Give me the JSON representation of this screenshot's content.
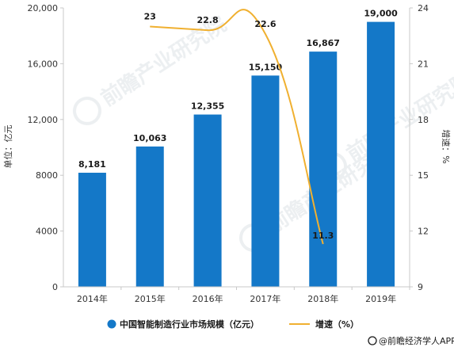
{
  "chart_data": {
    "type": "bar",
    "categories": [
      "2014年",
      "2015年",
      "2016年",
      "2017年",
      "2018年",
      "2019年"
    ],
    "series": [
      {
        "name": "中国智能制造行业市场规模（亿元）",
        "type": "bar",
        "axis": "left",
        "color": "#1478c8",
        "values": [
          8181,
          10063,
          12355,
          15150,
          16867,
          19000
        ],
        "labels": [
          "8,181",
          "10,063",
          "12,355",
          "15,150",
          "16,867",
          "19,000"
        ]
      },
      {
        "name": "增速（%）",
        "type": "line",
        "axis": "right",
        "color": "#f0b030",
        "values": [
          null,
          23,
          22.8,
          22.6,
          11.3,
          null
        ],
        "labels": [
          "",
          "23",
          "22.8",
          "22.6",
          "11.3",
          ""
        ]
      }
    ],
    "ylabel_left": "单位：亿元",
    "ylabel_right": "增速：%",
    "ylim_left": [
      0,
      20000
    ],
    "yticks_left": [
      "0",
      "4000",
      "8000",
      "12,000",
      "16,000",
      "20,000"
    ],
    "ylim_right": [
      9,
      24
    ],
    "yticks_right": [
      "9",
      "12",
      "15",
      "18",
      "21",
      "24"
    ],
    "legend_position": "bottom",
    "grid": false
  },
  "credit": "@前瞻经济学人APP",
  "watermark": "前瞻产业研究院"
}
